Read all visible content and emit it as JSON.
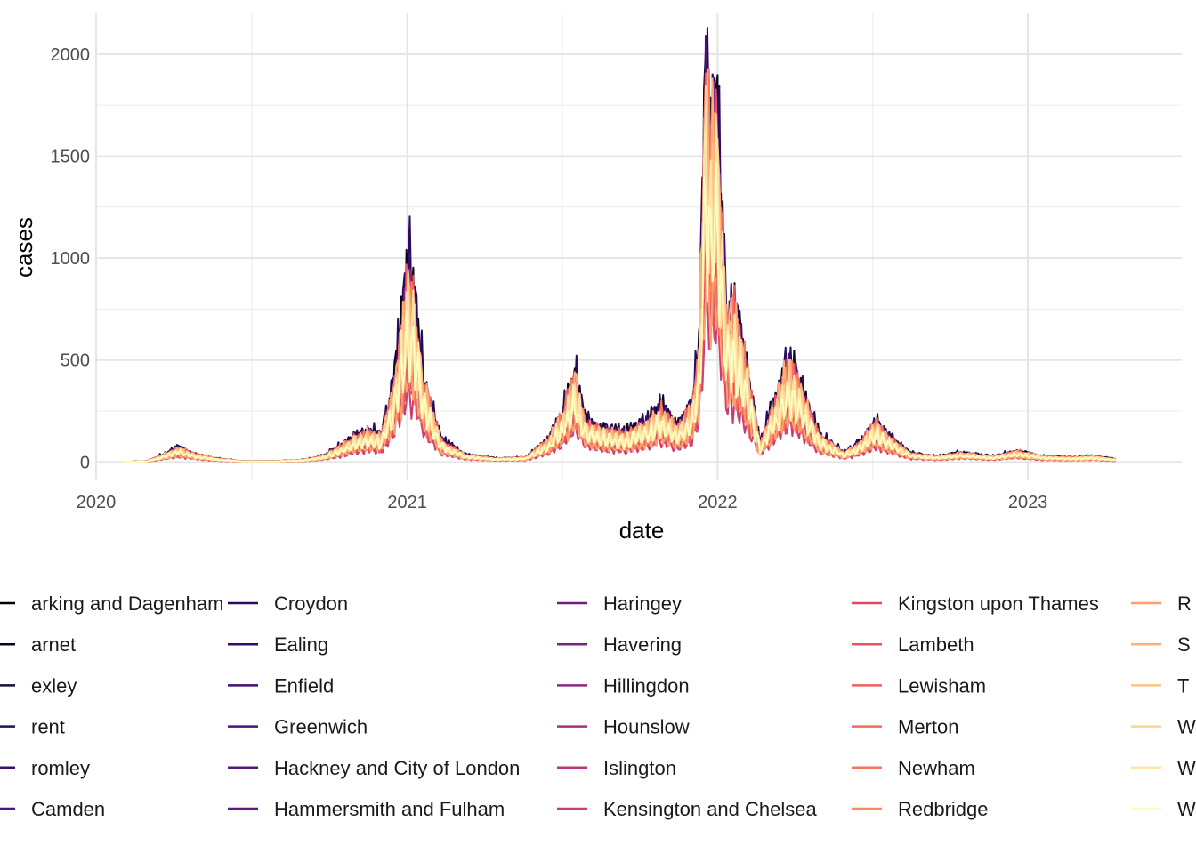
{
  "chart_data": {
    "type": "line",
    "title": "",
    "xlabel": "date",
    "ylabel": "cases",
    "x_range": [
      "2020-01-01",
      "2023-07-01"
    ],
    "ylim": [
      -90,
      2200
    ],
    "x_ticks": [
      {
        "value": "2020-01-01",
        "label": "2020"
      },
      {
        "value": "2021-01-01",
        "label": "2021"
      },
      {
        "value": "2022-01-01",
        "label": "2022"
      },
      {
        "value": "2023-01-01",
        "label": "2023"
      }
    ],
    "y_ticks": [
      0,
      500,
      1000,
      1500,
      2000
    ],
    "grid": true,
    "legend_position": "bottom",
    "x_start": "2020-02-01",
    "x_end": "2023-04-15",
    "series": [
      {
        "name": "Barking and Dagenham",
        "legend_text": "arking and Dagenham",
        "color": "#000004",
        "scale": 0.8
      },
      {
        "name": "Barnet",
        "legend_text": "arnet",
        "color": "#07061c",
        "scale": 1.05
      },
      {
        "name": "Bexley",
        "legend_text": "exley",
        "color": "#150e38",
        "scale": 0.75
      },
      {
        "name": "Brent",
        "legend_text": "rent",
        "color": "#251255",
        "scale": 0.9
      },
      {
        "name": "Bromley",
        "legend_text": "romley",
        "color": "#3b0f70",
        "scale": 0.85
      },
      {
        "name": "Camden",
        "legend_text": "Camden",
        "color": "#51127c",
        "scale": 0.7
      },
      {
        "name": "Croydon",
        "legend_text": "Croydon",
        "color": "#2a0a5e",
        "scale": 1.1
      },
      {
        "name": "Ealing",
        "legend_text": "Ealing",
        "color": "#350b6a",
        "scale": 0.95
      },
      {
        "name": "Enfield",
        "legend_text": "Enfield",
        "color": "#410f75",
        "scale": 0.95
      },
      {
        "name": "Greenwich",
        "legend_text": "Greenwich",
        "color": "#4c117a",
        "scale": 0.85
      },
      {
        "name": "Hackney and City of London",
        "legend_text": "Hackney and City of London",
        "color": "#57157e",
        "scale": 0.9
      },
      {
        "name": "Hammersmith and Fulham",
        "legend_text": "Hammersmith and Fulham",
        "color": "#631a80",
        "scale": 0.65
      },
      {
        "name": "Haringey",
        "legend_text": "Haringey",
        "color": "#6e1e81",
        "scale": 0.75
      },
      {
        "name": "Havering",
        "legend_text": "Havering",
        "color": "#7c2382",
        "scale": 0.8
      },
      {
        "name": "Hillingdon",
        "legend_text": "Hillingdon",
        "color": "#8c2981",
        "scale": 0.9
      },
      {
        "name": "Hounslow",
        "legend_text": "Hounslow",
        "color": "#a3307e",
        "scale": 0.8
      },
      {
        "name": "Islington",
        "legend_text": "Islington",
        "color": "#b73779",
        "scale": 0.65
      },
      {
        "name": "Kensington and Chelsea",
        "legend_text": "Kensington and Chelsea",
        "color": "#c83e73",
        "scale": 0.45
      },
      {
        "name": "Kingston upon Thames",
        "legend_text": "Kingston upon Thames",
        "color": "#de4968",
        "scale": 0.55
      },
      {
        "name": "Lambeth",
        "legend_text": "Lambeth",
        "color": "#e8535f",
        "scale": 0.95
      },
      {
        "name": "Lewisham",
        "legend_text": "Lewisham",
        "color": "#f0605d",
        "scale": 0.9
      },
      {
        "name": "Merton",
        "legend_text": "Merton",
        "color": "#f56b5c",
        "scale": 0.6
      },
      {
        "name": "Newham",
        "legend_text": "Newham",
        "color": "#f8765c",
        "scale": 0.95
      },
      {
        "name": "Redbridge",
        "legend_text": "Redbridge",
        "color": "#fb8861",
        "scale": 0.85
      },
      {
        "name": "Richmond upon Thames",
        "legend_text": "R",
        "color": "#fe9f6d",
        "scale": 0.55
      },
      {
        "name": "Southwark",
        "legend_text": "S",
        "color": "#feb078",
        "scale": 0.95
      },
      {
        "name": "Tower Hamlets",
        "legend_text": "T",
        "color": "#fec287",
        "scale": 0.85
      },
      {
        "name": "Waltham Forest",
        "legend_text": "W",
        "color": "#fed395",
        "scale": 0.8
      },
      {
        "name": "Wandsworth",
        "legend_text": "W",
        "color": "#fde5a7",
        "scale": 0.85
      },
      {
        "name": "Westminster",
        "legend_text": "W",
        "color": "#fcfdbf",
        "scale": 0.75
      }
    ],
    "envelope": [
      {
        "x": "2020-02-01",
        "y": 0
      },
      {
        "x": "2020-03-01",
        "y": 5
      },
      {
        "x": "2020-03-20",
        "y": 40
      },
      {
        "x": "2020-04-07",
        "y": 80
      },
      {
        "x": "2020-04-25",
        "y": 45
      },
      {
        "x": "2020-05-20",
        "y": 20
      },
      {
        "x": "2020-06-20",
        "y": 5
      },
      {
        "x": "2020-08-01",
        "y": 5
      },
      {
        "x": "2020-09-01",
        "y": 12
      },
      {
        "x": "2020-09-25",
        "y": 35
      },
      {
        "x": "2020-10-15",
        "y": 90
      },
      {
        "x": "2020-11-01",
        "y": 140
      },
      {
        "x": "2020-11-15",
        "y": 170
      },
      {
        "x": "2020-12-01",
        "y": 150
      },
      {
        "x": "2020-12-15",
        "y": 400
      },
      {
        "x": "2020-12-28",
        "y": 800
      },
      {
        "x": "2021-01-01",
        "y": 1080
      },
      {
        "x": "2021-01-08",
        "y": 900
      },
      {
        "x": "2021-01-20",
        "y": 450
      },
      {
        "x": "2021-02-10",
        "y": 120
      },
      {
        "x": "2021-03-10",
        "y": 40
      },
      {
        "x": "2021-04-15",
        "y": 20
      },
      {
        "x": "2021-05-20",
        "y": 25
      },
      {
        "x": "2021-06-15",
        "y": 120
      },
      {
        "x": "2021-07-01",
        "y": 250
      },
      {
        "x": "2021-07-17",
        "y": 470
      },
      {
        "x": "2021-07-30",
        "y": 220
      },
      {
        "x": "2021-08-20",
        "y": 180
      },
      {
        "x": "2021-09-15",
        "y": 160
      },
      {
        "x": "2021-10-10",
        "y": 220
      },
      {
        "x": "2021-10-25",
        "y": 300
      },
      {
        "x": "2021-11-15",
        "y": 200
      },
      {
        "x": "2021-12-01",
        "y": 280
      },
      {
        "x": "2021-12-10",
        "y": 600
      },
      {
        "x": "2021-12-18",
        "y": 2090
      },
      {
        "x": "2021-12-26",
        "y": 1850
      },
      {
        "x": "2021-12-31",
        "y": 1960
      },
      {
        "x": "2022-01-05",
        "y": 1430
      },
      {
        "x": "2022-01-12",
        "y": 800
      },
      {
        "x": "2022-01-20",
        "y": 850
      },
      {
        "x": "2022-02-05",
        "y": 500
      },
      {
        "x": "2022-02-20",
        "y": 100
      },
      {
        "x": "2022-03-01",
        "y": 220
      },
      {
        "x": "2022-03-15",
        "y": 400
      },
      {
        "x": "2022-03-25",
        "y": 550
      },
      {
        "x": "2022-04-10",
        "y": 400
      },
      {
        "x": "2022-04-30",
        "y": 150
      },
      {
        "x": "2022-05-30",
        "y": 50
      },
      {
        "x": "2022-06-20",
        "y": 120
      },
      {
        "x": "2022-07-05",
        "y": 215
      },
      {
        "x": "2022-07-20",
        "y": 150
      },
      {
        "x": "2022-08-15",
        "y": 50
      },
      {
        "x": "2022-09-15",
        "y": 30
      },
      {
        "x": "2022-10-15",
        "y": 50
      },
      {
        "x": "2022-11-20",
        "y": 30
      },
      {
        "x": "2022-12-20",
        "y": 60
      },
      {
        "x": "2023-01-20",
        "y": 30
      },
      {
        "x": "2023-02-20",
        "y": 25
      },
      {
        "x": "2023-03-20",
        "y": 30
      },
      {
        "x": "2023-04-15",
        "y": 15
      }
    ]
  }
}
